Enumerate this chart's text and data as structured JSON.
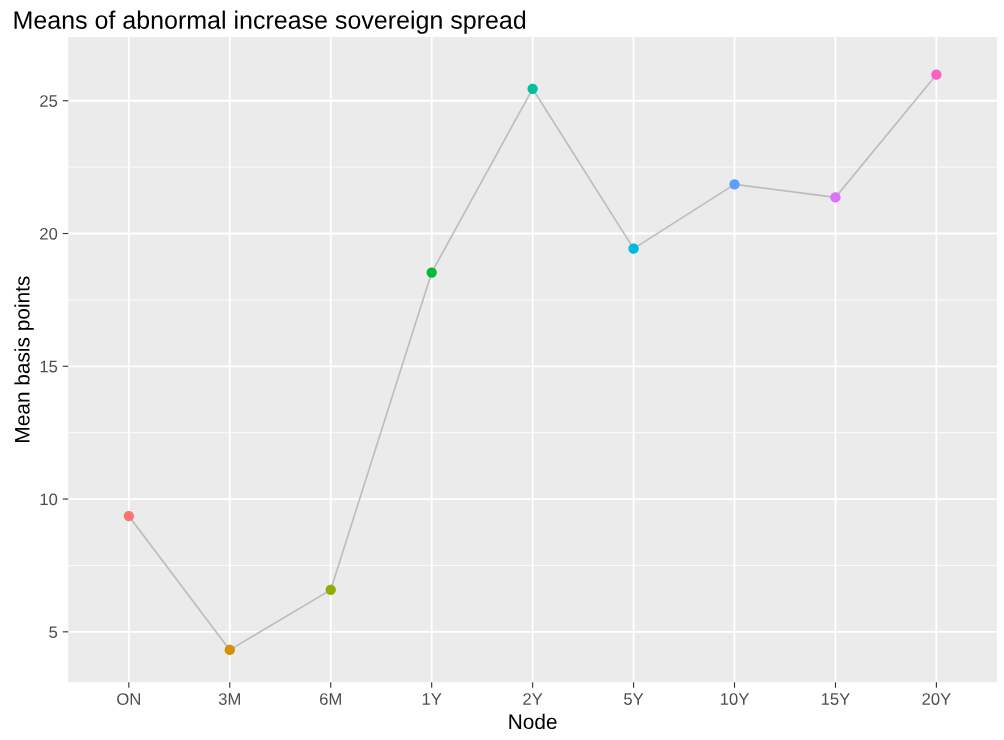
{
  "chart_data": {
    "type": "line",
    "title": "Means of abnormal increase sovereign spread",
    "xlabel": "Node",
    "ylabel": "Mean basis points",
    "categories": [
      "ON",
      "3M",
      "6M",
      "1Y",
      "2Y",
      "5Y",
      "10Y",
      "15Y",
      "20Y"
    ],
    "values": [
      9.36,
      4.32,
      6.58,
      18.53,
      25.45,
      19.43,
      21.85,
      21.36,
      25.98
    ],
    "color": "#bdbdbd",
    "colors": [
      "#f8766d",
      "#d39200",
      "#93aa00",
      "#00ba38",
      "#00c19f",
      "#00b9e3",
      "#619cff",
      "#db72fb",
      "#ff61c3"
    ],
    "marker": "circle",
    "line_style": "solid",
    "ylim": [
      3.1,
      27.4
    ],
    "yticks": [
      5,
      10,
      15,
      20,
      25
    ],
    "grid": true
  }
}
